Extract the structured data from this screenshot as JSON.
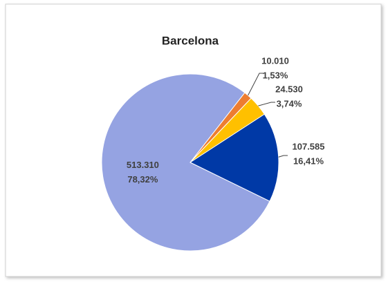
{
  "chart_data": {
    "type": "pie",
    "title": "Barcelona",
    "values": [
      10010,
      24530,
      107585,
      513310
    ],
    "value_labels": [
      "10.010",
      "24.530",
      "107.585",
      "513.310"
    ],
    "percent_labels": [
      "1,53%",
      "3,74%",
      "16,41%",
      "78,32%"
    ],
    "colors": [
      "#ED7D31",
      "#FFC000",
      "#0039A6",
      "#95A3E2"
    ]
  }
}
